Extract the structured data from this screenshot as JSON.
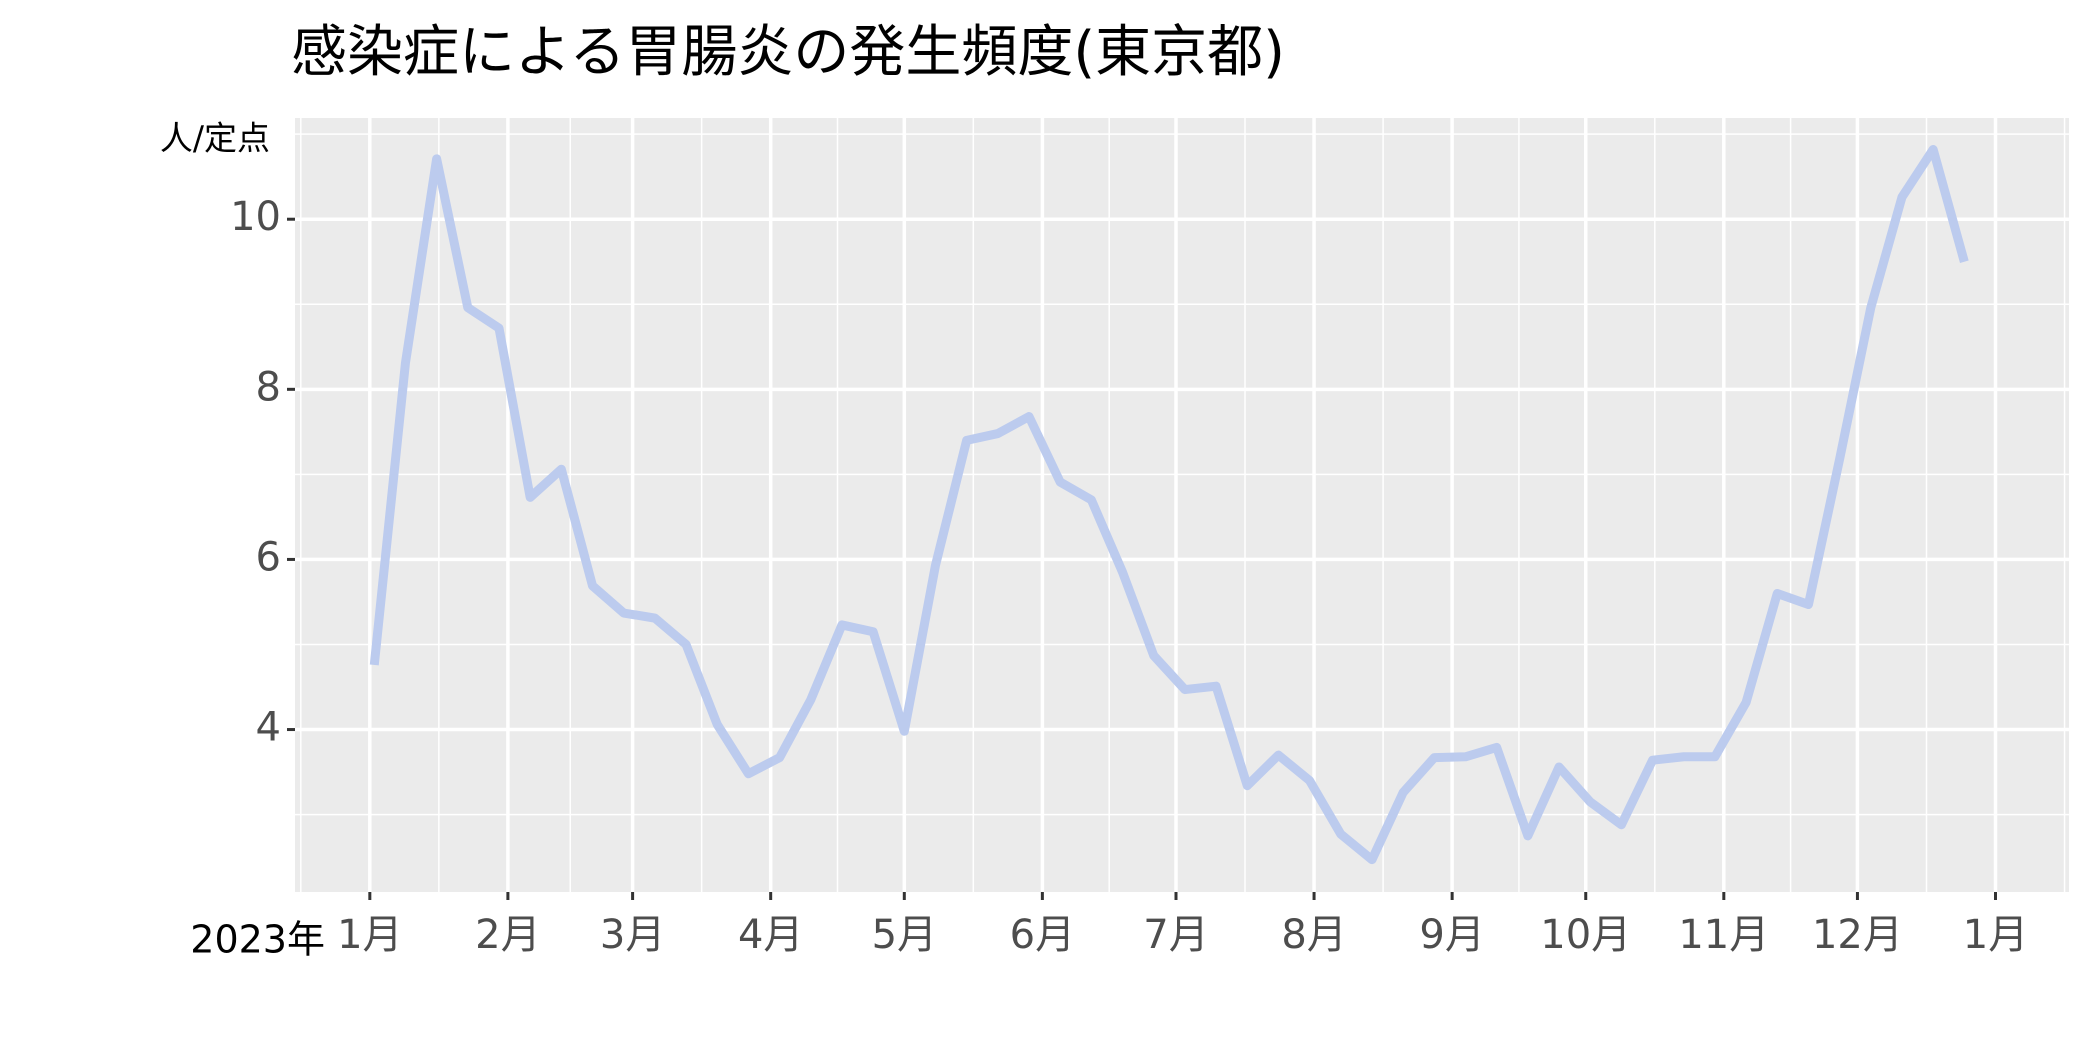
{
  "chart_data": {
    "type": "line",
    "title": "感染症による胃腸炎の発生頻度(東京都)",
    "y_label": "人/定点",
    "year_label": "2023年",
    "x": [
      1,
      8,
      15,
      22,
      29,
      36,
      43,
      50,
      57,
      64,
      71,
      78,
      85,
      92,
      99,
      106,
      113,
      120,
      127,
      134,
      141,
      148,
      155,
      162,
      169,
      176,
      183,
      190,
      197,
      204,
      211,
      218,
      225,
      232,
      239,
      246,
      253,
      260,
      267,
      274,
      281,
      288,
      295,
      302,
      309,
      316,
      323,
      330,
      337,
      344,
      351,
      358
    ],
    "series": [
      {
        "color": "#bccbee",
        "values": [
          4.76,
          8.31,
          10.71,
          8.96,
          8.72,
          6.73,
          7.06,
          5.69,
          5.37,
          5.31,
          5.0,
          4.06,
          3.48,
          3.67,
          4.35,
          5.23,
          5.15,
          3.98,
          5.93,
          7.4,
          7.48,
          7.68,
          6.91,
          6.7,
          5.85,
          4.87,
          4.47,
          4.51,
          3.34,
          3.7,
          3.4,
          2.77,
          2.47,
          3.26,
          3.67,
          3.68,
          3.79,
          2.75,
          3.56,
          3.15,
          2.88,
          3.64,
          3.68,
          3.68,
          4.32,
          5.6,
          5.47,
          7.18,
          8.96,
          10.26,
          10.82,
          9.5
        ]
      }
    ],
    "xlim": [
      -16.8,
      381.5
    ],
    "xticks": [
      {
        "value": 0,
        "label": "1月"
      },
      {
        "value": 31,
        "label": "2月"
      },
      {
        "value": 59,
        "label": "3月"
      },
      {
        "value": 90,
        "label": "4月"
      },
      {
        "value": 120,
        "label": "5月"
      },
      {
        "value": 151,
        "label": "6月"
      },
      {
        "value": 181,
        "label": "7月"
      },
      {
        "value": 212,
        "label": "8月"
      },
      {
        "value": 243,
        "label": "9月"
      },
      {
        "value": 273,
        "label": "10月"
      },
      {
        "value": 304,
        "label": "11月"
      },
      {
        "value": 334,
        "label": "12月"
      },
      {
        "value": 365,
        "label": "1月"
      }
    ],
    "ylim": [
      2.09,
      11.19
    ],
    "yticks": [
      4,
      6,
      8,
      10
    ],
    "grid": true
  }
}
